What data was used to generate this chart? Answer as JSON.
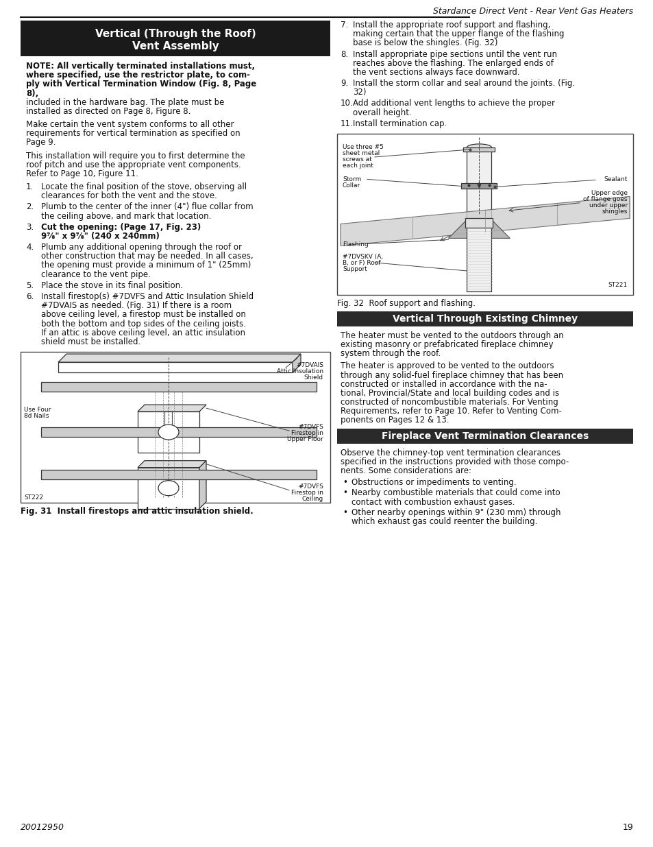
{
  "page_title": "Stardance Direct Vent - Rear Vent Gas Heaters",
  "page_num": "19",
  "doc_num": "20012950",
  "section1_title_line1": "Vertical (Through the Roof)",
  "section1_title_line2": "Vent Assembly",
  "note_bold_lines": [
    "NOTE: All vertically terminated installations must,",
    "where specified, use the restrictor plate, to com-",
    "ply with Vertical Termination Window (Fig. 8, Page",
    "8),"
  ],
  "note_normal_lines": [
    "included in the hardware bag. The plate must be",
    "installed as directed on Page 8, Figure 8."
  ],
  "para1_lines": [
    "Make certain the vent system conforms to all other",
    "requirements for vertical termination as specified on",
    "Page 9."
  ],
  "para2_lines": [
    "This installation will require you to first determine the",
    "roof pitch and use the appropriate vent components.",
    "Refer to Page 10, Figure 11."
  ],
  "num_items": [
    {
      "bold": false,
      "lines": [
        "Locate the final position of the stove, observing all",
        "clearances for both the vent and the stove."
      ]
    },
    {
      "bold": false,
      "lines": [
        "Plumb to the center of the inner (4\") flue collar from",
        "the ceiling above, and mark that location."
      ]
    },
    {
      "bold": true,
      "lines": [
        "Cut the opening: (Page 17, Fig. 23)",
        "9⅞\" x 9⅞\" (240 x 240mm)"
      ]
    },
    {
      "bold": false,
      "lines": [
        "Plumb any additional opening through the roof or",
        "other construction that may be needed. In all cases,",
        "the opening must provide a minimum of 1\" (25mm)",
        "clearance to the vent pipe."
      ]
    },
    {
      "bold": false,
      "lines": [
        "Place the stove in its final position."
      ]
    },
    {
      "bold": false,
      "lines": [
        "Install firestop(s) #7DVFS and Attic Insulation Shield",
        "#7DVAIS as needed. (Fig. 31) If there is a room",
        "above ceiling level, a firestop must be installed on",
        "both the bottom and top sides of the ceiling joists.",
        "If an attic is above ceiling level, an attic insulation",
        "shield must be installed."
      ]
    }
  ],
  "right_items": [
    {
      "num": 7,
      "lines": [
        "Install the appropriate roof support and flashing,",
        "making certain that the upper flange of the flashing",
        "base is below the shingles. (Fig. 32)"
      ]
    },
    {
      "num": 8,
      "lines": [
        "Install appropriate pipe sections until the vent run",
        "reaches above the flashing. The enlarged ends of",
        "the vent sections always face downward."
      ]
    },
    {
      "num": 9,
      "lines": [
        "Install the storm collar and seal around the joints. (Fig.",
        "32)"
      ]
    },
    {
      "num": 10,
      "lines": [
        "Add additional vent lengths to achieve the proper",
        "overall height."
      ]
    },
    {
      "num": 11,
      "lines": [
        "Install termination cap."
      ]
    }
  ],
  "fig31_caption": "Fig. 31  Install firestops and attic insulation shield.",
  "fig32_caption": "Fig. 32  Roof support and flashing.",
  "section2_title": "Vertical Through Existing Chimney",
  "section2_lines1": [
    "The heater must be vented to the outdoors through an",
    "existing masonry or prefabricated fireplace chimney",
    "system through the roof."
  ],
  "section2_lines2": [
    "The heater is approved to be vented to the outdoors",
    "through any solid-fuel fireplace chimney that has been",
    "constructed or installed in accordance with the na-",
    "tional, Provincial/State and local building codes and is",
    "constructed of noncombustible materials. For Venting",
    "Requirements, refer to Page 10. Refer to Venting Com-",
    "ponents on Pages 12 & 13."
  ],
  "section3_title": "Fireplace Vent Termination Clearances",
  "section3_intro": [
    "Observe the chimney-top vent termination clearances",
    "specified in the instructions provided with those compo-",
    "nents. Some considerations are:"
  ],
  "bullet_items": [
    [
      "Obstructions or impediments to venting."
    ],
    [
      "Nearby combustible materials that could come into",
      "contact with combustion exhaust gases."
    ],
    [
      "Other nearby openings within 9\" (230 mm) through",
      "which exhaust gas could reenter the building."
    ]
  ]
}
